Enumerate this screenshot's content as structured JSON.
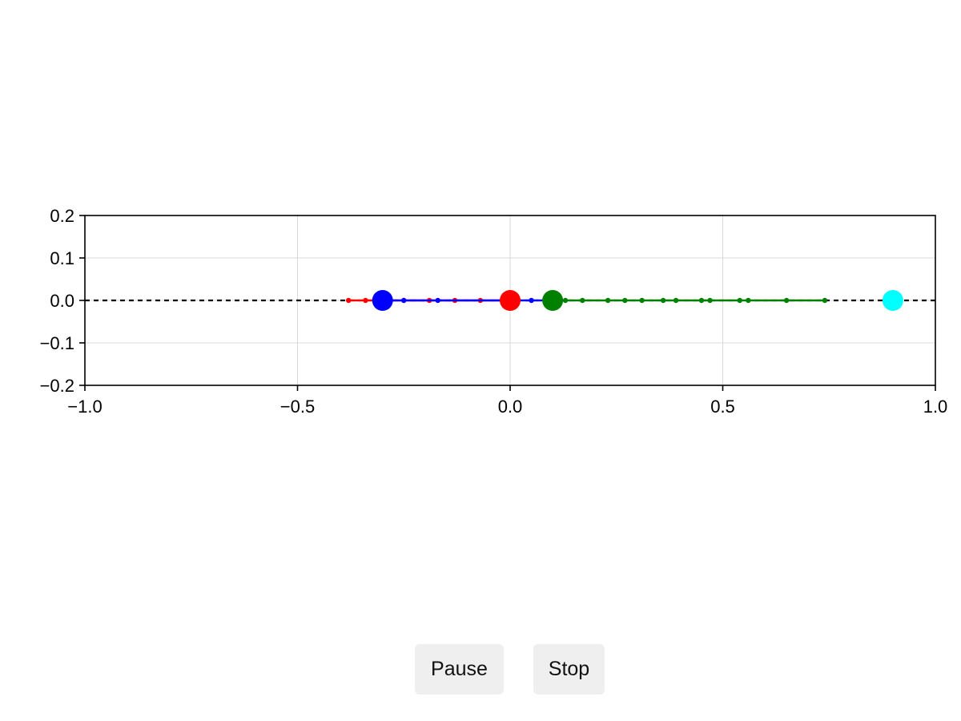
{
  "window": {
    "title": ""
  },
  "controls": {
    "pause_label": "Pause",
    "stop_label": "Stop"
  },
  "chart_data": {
    "type": "scatter",
    "title": "",
    "xlabel": "",
    "ylabel": "",
    "xlim": [
      -1.0,
      1.0
    ],
    "ylim": [
      -0.2,
      0.2
    ],
    "grid": true,
    "x_ticks": [
      -1.0,
      -0.5,
      0.0,
      0.5,
      1.0
    ],
    "y_ticks": [
      -0.2,
      -0.1,
      0.0,
      0.1,
      0.2
    ],
    "x_tick_labels": [
      "−1.0",
      "−0.5",
      "0.0",
      "0.5",
      "1.0"
    ],
    "y_tick_labels": [
      "−0.2",
      "−0.1",
      "0.0",
      "0.1",
      "0.2"
    ],
    "reference_line": {
      "y": 0.0,
      "style": "dashed",
      "color": "#000000"
    },
    "trails": [
      {
        "color": "#ff0000",
        "x": [
          -0.38,
          -0.34,
          -0.3,
          -0.25,
          -0.19,
          -0.13,
          -0.07,
          0.0
        ],
        "y": [
          0,
          0,
          0,
          0,
          0,
          0,
          0,
          0
        ]
      },
      {
        "color": "#0000ff",
        "x": [
          -0.3,
          -0.25,
          -0.17,
          0.0,
          0.05,
          0.1
        ],
        "y": [
          0,
          0,
          0,
          0,
          0,
          0
        ]
      },
      {
        "color": "#008000",
        "x": [
          0.1,
          0.13,
          0.17,
          0.23,
          0.27,
          0.31,
          0.36,
          0.39,
          0.45,
          0.47,
          0.54,
          0.56,
          0.65,
          0.74
        ],
        "y": [
          0,
          0,
          0,
          0,
          0,
          0,
          0,
          0,
          0,
          0,
          0,
          0,
          0,
          0
        ]
      }
    ],
    "bodies": [
      {
        "color": "#0000ff",
        "x": -0.3,
        "y": 0.0
      },
      {
        "color": "#ff0000",
        "x": 0.0,
        "y": 0.0
      },
      {
        "color": "#008000",
        "x": 0.1,
        "y": 0.0
      },
      {
        "color": "#00ffff",
        "x": 0.9,
        "y": 0.0
      }
    ]
  }
}
